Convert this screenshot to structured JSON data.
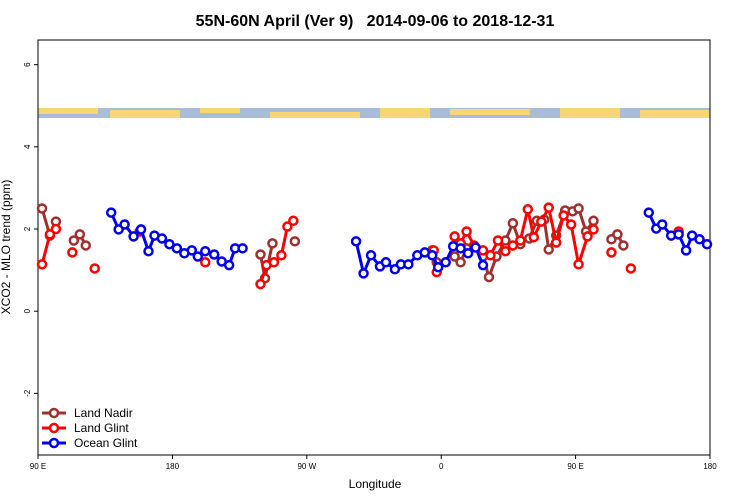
{
  "chart_data": {
    "type": "line",
    "title": "55N-60N April (Ver 9)   2014-09-06 to 2018-12-31",
    "xlabel": "Longitude",
    "ylabel": "XCO2 - MLO trend (ppm)",
    "xlim": [
      90,
      540
    ],
    "ylim": [
      -3.5,
      6.6
    ],
    "xticks": [
      {
        "value": 90,
        "label": "90 E"
      },
      180,
      {
        "value": 270,
        "label": "90 W"
      },
      {
        "value": 360,
        "label": "0"
      },
      {
        "value": 450,
        "label": "90 E"
      },
      {
        "value": 540,
        "label": "180"
      }
    ],
    "yticks": [
      -2,
      0,
      2,
      4,
      6
    ],
    "legend": "bottom-left",
    "series": [
      {
        "name": "Land Nadir",
        "color": "#a0302d",
        "x": [
          92.7,
          98,
          102,
          null,
          114,
          118,
          122,
          null,
          239,
          242,
          247,
          null,
          262,
          null,
          354,
          357,
          null,
          369,
          373,
          377,
          null,
          388,
          392,
          397,
          403,
          408,
          413,
          419,
          424,
          429,
          432,
          437,
          443,
          448,
          452,
          457,
          462,
          null,
          474,
          478,
          482
        ],
        "values": [
          2.5,
          1.84,
          2.18,
          null,
          1.72,
          1.87,
          1.6,
          null,
          1.38,
          0.8,
          1.65,
          null,
          1.7,
          null,
          1.48,
          1.19,
          null,
          1.33,
          1.19,
          1.53,
          null,
          1.33,
          0.83,
          1.33,
          1.72,
          2.14,
          1.63,
          1.77,
          2.2,
          2.23,
          1.5,
          1.84,
          2.45,
          2.43,
          2.5,
          1.94,
          2.2,
          null,
          1.75,
          1.87,
          1.6
        ]
      },
      {
        "name": "Land Glint",
        "color": "#ff0000",
        "x": [
          92.7,
          98,
          102,
          null,
          113,
          null,
          128,
          null,
          158,
          null,
          202,
          null,
          239,
          243,
          248,
          253,
          257,
          261,
          null,
          355,
          357,
          null,
          369,
          373,
          377,
          382,
          388,
          393,
          398,
          403,
          408,
          413,
          418,
          422,
          427,
          432,
          437,
          442,
          447,
          452,
          458,
          462,
          null,
          474,
          null,
          487,
          null,
          519
        ],
        "values": [
          1.14,
          1.87,
          2.0,
          null,
          1.43,
          null,
          1.04,
          null,
          1.94,
          null,
          1.19,
          null,
          0.66,
          1.12,
          1.19,
          1.36,
          2.06,
          2.2,
          null,
          1.48,
          0.95,
          null,
          1.82,
          1.65,
          1.94,
          1.6,
          1.48,
          1.36,
          1.72,
          1.46,
          1.6,
          1.72,
          2.48,
          1.8,
          2.18,
          2.52,
          1.67,
          2.33,
          2.11,
          1.14,
          1.82,
          1.99,
          null,
          1.43,
          null,
          1.04,
          null,
          1.94
        ]
      },
      {
        "name": "Ocean Glint",
        "color": "#0000ee",
        "x": [
          139,
          144,
          148,
          154,
          159,
          164,
          168,
          173,
          178,
          183,
          188,
          193,
          197,
          202,
          208,
          213,
          218,
          222,
          227,
          null,
          303,
          308,
          313,
          319,
          323,
          329,
          333,
          338,
          344,
          349,
          354,
          358,
          363,
          368,
          373,
          378,
          383,
          388,
          null,
          499,
          504,
          508,
          514,
          519,
          524,
          528,
          533,
          538
        ],
        "values": [
          2.4,
          1.99,
          2.11,
          1.82,
          1.99,
          1.46,
          1.84,
          1.77,
          1.63,
          1.53,
          1.41,
          1.48,
          1.33,
          1.46,
          1.38,
          1.21,
          1.12,
          1.53,
          1.53,
          null,
          1.7,
          0.92,
          1.36,
          1.09,
          1.19,
          1.02,
          1.14,
          1.14,
          1.36,
          1.43,
          1.36,
          1.07,
          1.19,
          1.58,
          1.53,
          1.41,
          1.55,
          1.12,
          null,
          2.4,
          2.01,
          2.11,
          1.84,
          1.87,
          1.48,
          1.84,
          1.75,
          1.63
        ]
      }
    ]
  }
}
